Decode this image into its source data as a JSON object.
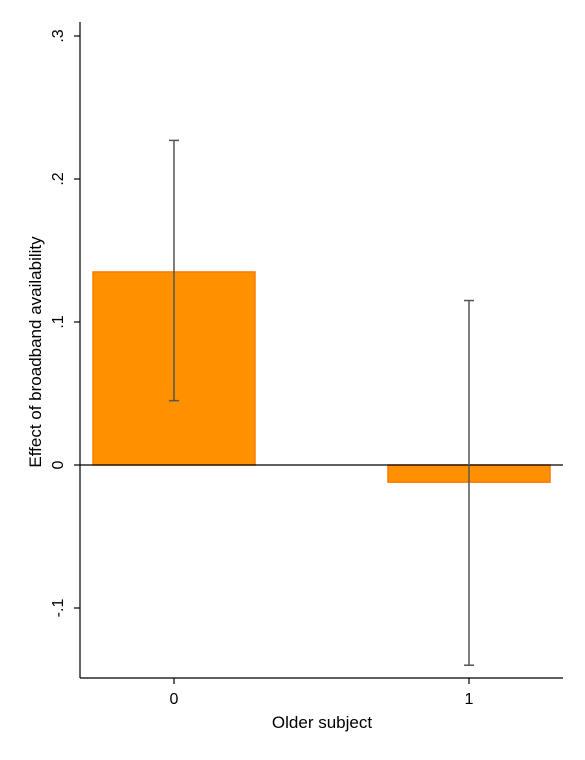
{
  "chart_data": {
    "type": "bar",
    "title": "",
    "xlabel": "Older subject",
    "ylabel": "Effect of broadband availability",
    "categories": [
      "0",
      "1"
    ],
    "values": [
      0.135,
      -0.012
    ],
    "ci_low": [
      0.045,
      -0.14
    ],
    "ci_high": [
      0.227,
      0.115
    ],
    "ylim": [
      -0.15,
      0.31
    ],
    "yticks": [
      -0.1,
      0,
      0.1,
      0.2,
      0.3
    ],
    "ytick_labels": [
      "-.1",
      "0",
      ".1",
      ".2",
      ".3"
    ],
    "grid": false,
    "legend": "none",
    "colors": {
      "bar_fill": "#ff9100",
      "bar_stroke": "#ff7a00",
      "error_bar": "#555555",
      "zero_line": "#000000",
      "axis": "#000000"
    }
  }
}
